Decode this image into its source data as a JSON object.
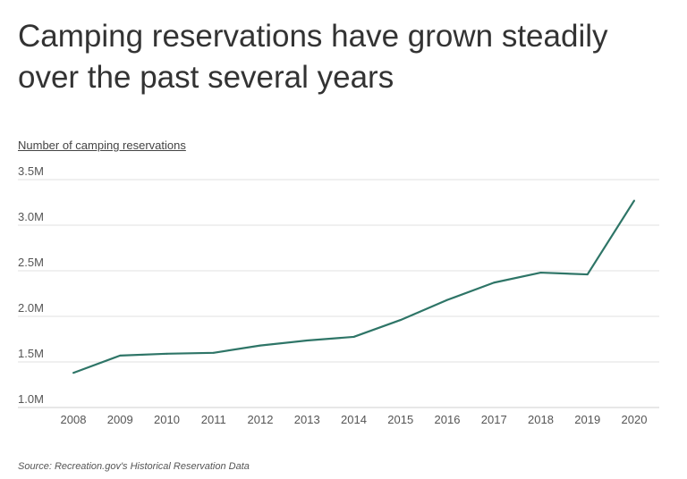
{
  "chart_data": {
    "type": "line",
    "title": "Camping reservations have grown steadily over the past several years",
    "ylabel": "Number of camping reservations",
    "xlabel": "",
    "x": [
      "2008",
      "2009",
      "2010",
      "2011",
      "2012",
      "2013",
      "2014",
      "2015",
      "2016",
      "2017",
      "2018",
      "2019",
      "2020"
    ],
    "series": [
      {
        "values": [
          1.38,
          1.57,
          1.59,
          1.6,
          1.68,
          1.735,
          1.775,
          1.96,
          2.18,
          2.37,
          2.48,
          2.46,
          3.27
        ],
        "color": "#2e7567"
      }
    ],
    "ylim": [
      1.0,
      3.5
    ],
    "yticks": [
      1.0,
      1.5,
      2.0,
      2.5,
      3.0,
      3.5
    ],
    "ytick_labels": [
      "1.0M",
      "1.5M",
      "2.0M",
      "2.5M",
      "3.0M",
      "3.5M"
    ],
    "grid": "horizontal",
    "source": "Source:  Recreation.gov's Historical Reservation Data"
  }
}
